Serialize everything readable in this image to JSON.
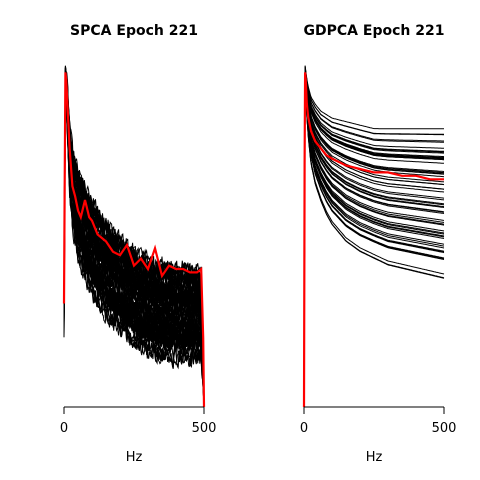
{
  "colors": {
    "traces": "#000000",
    "mean": "#ff0000",
    "background": "#ffffff"
  },
  "chart_data": [
    {
      "type": "line",
      "title": "SPCA Epoch 221",
      "xlabel": "Hz",
      "ylabel": "",
      "xlim": [
        0,
        500
      ],
      "xticks": [
        "0",
        "500"
      ],
      "y_axis_shown": false,
      "grid": false,
      "legend": "none",
      "series": [
        {
          "role": "many-traces",
          "color": "#000000",
          "count": 60,
          "x": [
            0,
            3,
            5,
            8,
            12,
            20,
            30,
            50,
            75,
            100,
            150,
            200,
            250,
            300,
            350,
            400,
            450,
            490,
            497,
            500
          ],
          "y_low": [
            0.2,
            0.55,
            0.9,
            0.88,
            0.8,
            0.62,
            0.52,
            0.44,
            0.38,
            0.33,
            0.27,
            0.22,
            0.19,
            0.16,
            0.15,
            0.14,
            0.14,
            0.14,
            0.05,
            0.0
          ],
          "y_high": [
            0.45,
            0.8,
            0.99,
            0.97,
            0.93,
            0.82,
            0.74,
            0.68,
            0.63,
            0.59,
            0.53,
            0.48,
            0.45,
            0.42,
            0.41,
            0.4,
            0.4,
            0.39,
            0.15,
            0.0
          ]
        },
        {
          "role": "mean",
          "color": "#ff0000",
          "x": [
            0,
            3,
            5,
            8,
            12,
            20,
            30,
            40,
            50,
            60,
            75,
            90,
            100,
            120,
            150,
            175,
            200,
            225,
            250,
            275,
            300,
            325,
            350,
            375,
            400,
            425,
            450,
            475,
            490,
            497,
            500
          ],
          "y": [
            0.3,
            0.7,
            0.97,
            0.95,
            0.88,
            0.75,
            0.64,
            0.61,
            0.57,
            0.55,
            0.6,
            0.55,
            0.54,
            0.5,
            0.48,
            0.45,
            0.44,
            0.47,
            0.41,
            0.43,
            0.4,
            0.46,
            0.38,
            0.41,
            0.4,
            0.4,
            0.39,
            0.39,
            0.4,
            0.2,
            0.0
          ]
        }
      ]
    },
    {
      "type": "line",
      "title": "GDPCA Epoch 221",
      "xlabel": "Hz",
      "ylabel": "",
      "xlim": [
        0,
        500
      ],
      "xticks": [
        "0",
        "500"
      ],
      "y_axis_shown": false,
      "grid": false,
      "legend": "none",
      "series": [
        {
          "role": "many-traces",
          "color": "#000000",
          "count": 60,
          "x": [
            0,
            2,
            4,
            6,
            10,
            15,
            25,
            40,
            60,
            80,
            100,
            150,
            200,
            250,
            300,
            350,
            400,
            450,
            500
          ],
          "y_low": [
            0.0,
            0.6,
            0.92,
            0.9,
            0.84,
            0.78,
            0.7,
            0.64,
            0.59,
            0.55,
            0.52,
            0.47,
            0.44,
            0.42,
            0.4,
            0.39,
            0.38,
            0.37,
            0.36
          ],
          "y_high": [
            0.0,
            0.8,
            0.99,
            0.98,
            0.95,
            0.93,
            0.9,
            0.88,
            0.86,
            0.85,
            0.84,
            0.83,
            0.82,
            0.81,
            0.81,
            0.81,
            0.81,
            0.81,
            0.81
          ]
        },
        {
          "role": "mean",
          "color": "#ff0000",
          "x": [
            0,
            2,
            4,
            6,
            10,
            15,
            25,
            40,
            60,
            80,
            100,
            150,
            200,
            250,
            300,
            350,
            400,
            450,
            500
          ],
          "y": [
            0.0,
            0.7,
            0.97,
            0.95,
            0.88,
            0.84,
            0.8,
            0.77,
            0.75,
            0.73,
            0.72,
            0.7,
            0.69,
            0.68,
            0.68,
            0.67,
            0.67,
            0.66,
            0.66
          ]
        }
      ]
    }
  ]
}
